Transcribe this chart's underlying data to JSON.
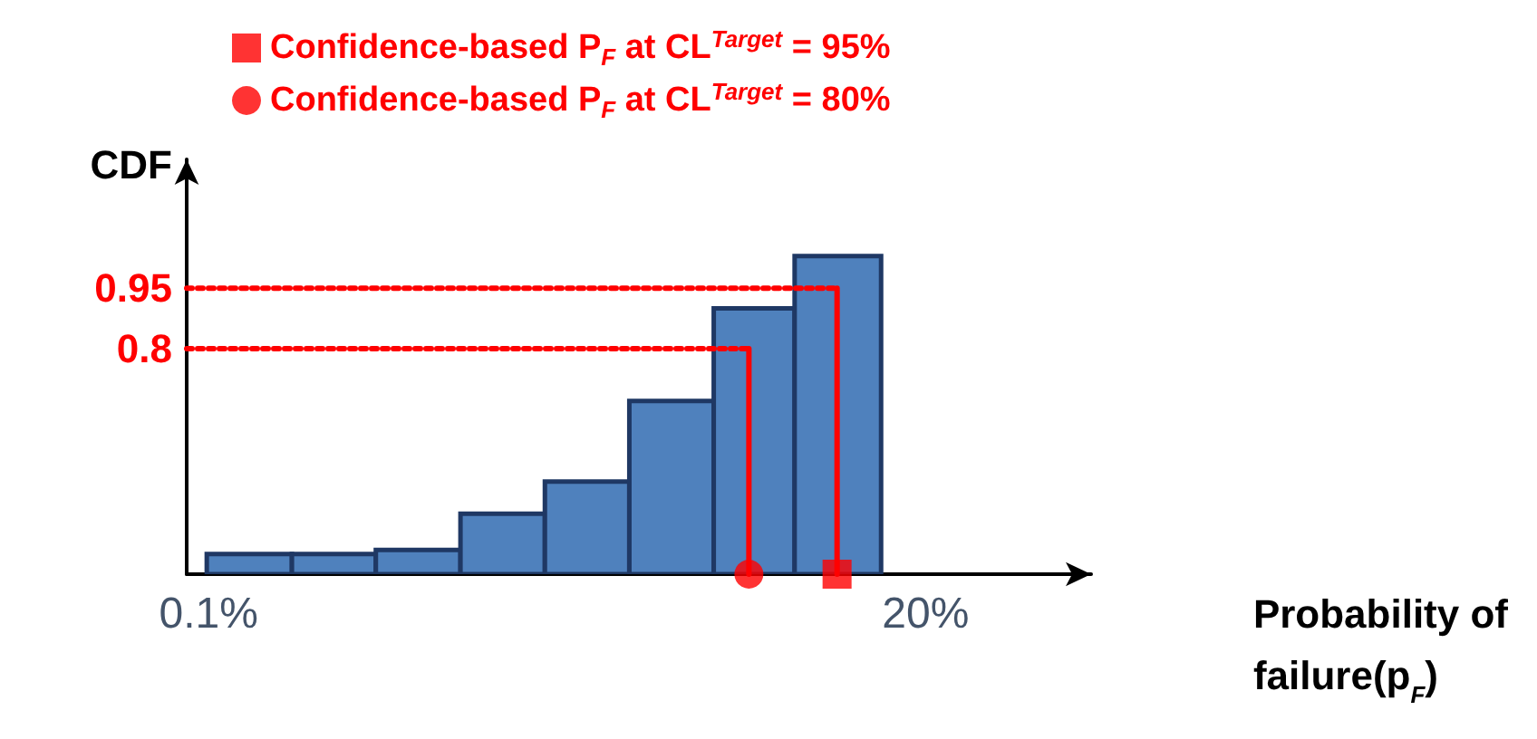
{
  "chart_data": {
    "type": "histogram",
    "xlabel": "Probability of failure(p$_{F}$)",
    "ylabel": "CDF",
    "bins": [
      0.0986,
      0.185,
      0.344,
      0.643,
      1.2,
      2.24,
      4.18,
      7.6,
      14.4
    ],
    "values": [
      0.29,
      0.29,
      0.3,
      0.39,
      0.47,
      0.67,
      0.9,
      1.03
    ],
    "color": "#4f81bd",
    "log": "x",
    "xlim": [
      0.085,
      68
    ],
    "xticks": [
      {
        "value": 0.1,
        "label": "0.1%"
      },
      {
        "value": 20,
        "label": "20%"
      }
    ],
    "ylim": [
      0.24,
      1.27
    ],
    "yticks": [
      0.8,
      0.95
    ],
    "legend": "top left",
    "grid": false,
    "series": [
      {
        "name": "Confidence-based P$_{F}$ at CL$^{Target}$ = 95%",
        "type": "scatter",
        "marker": "square",
        "color": "#ff0000",
        "x": [
          10.4
        ],
        "values": [
          0.24
        ]
      },
      {
        "name": "Confidence-based P$_{F}$ at CL$^{Target}$ = 80%",
        "type": "scatter",
        "marker": "circle",
        "color": "#ff0000",
        "x": [
          5.42
        ],
        "values": [
          0.24
        ]
      },
      {
        "type": "line",
        "color": "#ff0000",
        "line_style": "solid",
        "marker": "none",
        "x": [
          10.4,
          10.4
        ],
        "values": [
          0.24,
          0.95
        ]
      },
      {
        "type": "line",
        "color": "#ff0000",
        "line_style": "solid",
        "marker": "none",
        "x": [
          5.42,
          5.42
        ],
        "values": [
          0.24,
          0.8
        ]
      },
      {
        "type": "line",
        "color": "#ff0000",
        "line_style": "dotted",
        "marker": "none",
        "x": [
          0.085,
          10.4
        ],
        "values": [
          0.95,
          0.95
        ]
      },
      {
        "type": "line",
        "color": "#ff0000",
        "line_style": "dotted",
        "marker": "none",
        "x": [
          0.085,
          5.42
        ],
        "values": [
          0.8,
          0.8
        ]
      }
    ]
  }
}
